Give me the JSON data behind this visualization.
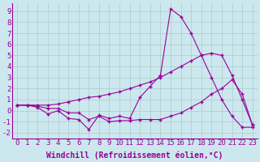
{
  "x": [
    0,
    1,
    2,
    3,
    4,
    5,
    6,
    7,
    8,
    9,
    10,
    11,
    12,
    13,
    14,
    15,
    16,
    17,
    18,
    19,
    20,
    21,
    22,
    23
  ],
  "line1": [
    0.5,
    0.5,
    0.3,
    -0.3,
    0.0,
    -0.7,
    -0.8,
    -1.7,
    -0.4,
    -0.7,
    -0.5,
    -0.7,
    1.2,
    2.2,
    3.2,
    9.2,
    8.5,
    7.0,
    5.0,
    3.0,
    1.0,
    -0.5,
    -1.5,
    -1.5
  ],
  "line2": [
    0.5,
    0.5,
    0.5,
    0.5,
    0.6,
    0.8,
    1.0,
    1.2,
    1.3,
    1.5,
    1.7,
    2.0,
    2.3,
    2.6,
    3.0,
    3.5,
    4.0,
    4.5,
    5.0,
    5.2,
    5.0,
    3.2,
    1.0,
    -1.3
  ],
  "line3": [
    0.5,
    0.5,
    0.4,
    0.2,
    0.2,
    -0.2,
    -0.2,
    -0.8,
    -0.5,
    -1.0,
    -0.9,
    -0.9,
    -0.8,
    -0.8,
    -0.8,
    -0.5,
    -0.2,
    0.3,
    0.8,
    1.5,
    2.0,
    2.8,
    1.5,
    -1.3
  ],
  "bg_color": "#cce8ee",
  "line_color": "#990099",
  "grid_color": "#aacccc",
  "xlabel": "Windchill (Refroidissement éolien,°C)",
  "ylabel_ticks": [
    -2,
    -1,
    0,
    1,
    2,
    3,
    4,
    5,
    6,
    7,
    8,
    9
  ],
  "xlabel_ticks": [
    0,
    1,
    2,
    3,
    4,
    5,
    6,
    7,
    8,
    9,
    10,
    11,
    12,
    13,
    14,
    15,
    16,
    17,
    18,
    19,
    20,
    21,
    22,
    23
  ],
  "xlim": [
    -0.5,
    23.5
  ],
  "ylim": [
    -2.5,
    9.8
  ],
  "font_size": 6.5,
  "marker": "+"
}
